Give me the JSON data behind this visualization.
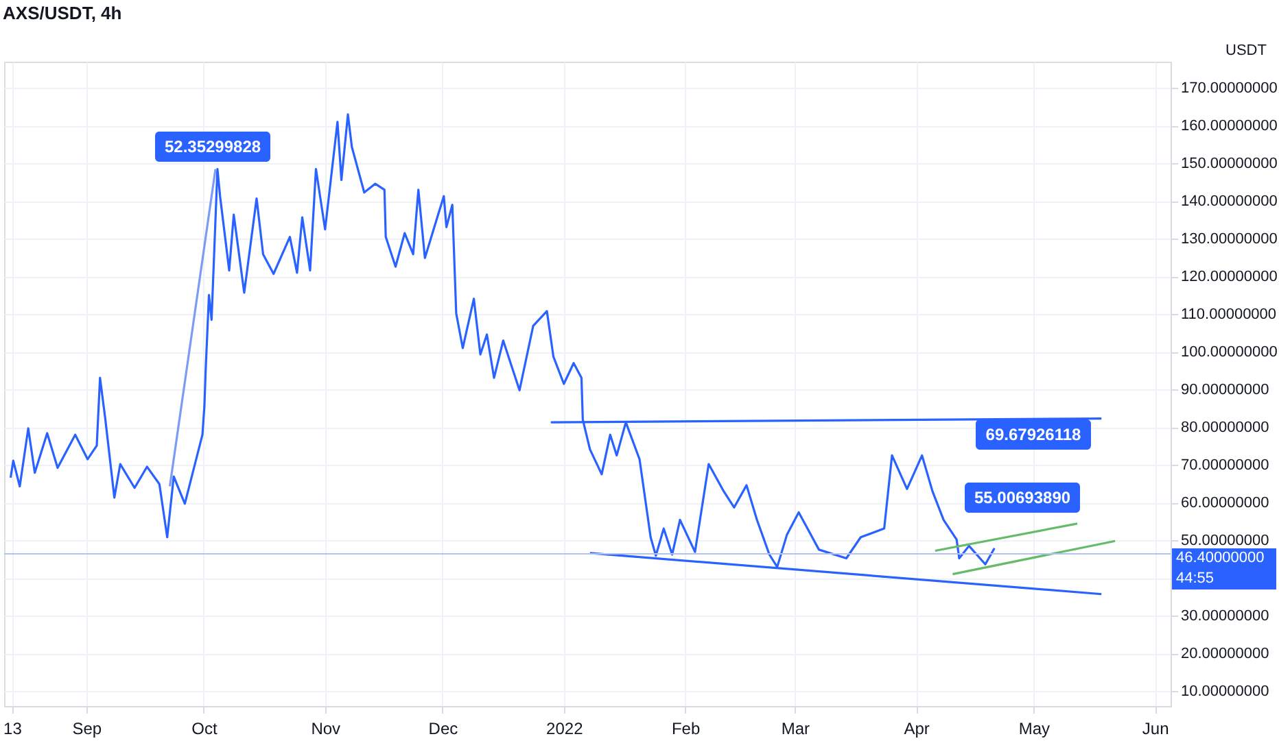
{
  "chart_data": {
    "type": "line",
    "title": "AXS/USDT, 4h",
    "ylabel": "USDT",
    "xlim": [
      "2021-08-11",
      "2022-06-05"
    ],
    "xticks": [
      {
        "value": "2021-08-13",
        "label": "13"
      },
      {
        "value": "2021-09-01",
        "label": "Sep"
      },
      {
        "value": "2021-10-01",
        "label": "Oct"
      },
      {
        "value": "2021-11-01",
        "label": "Nov"
      },
      {
        "value": "2021-12-01",
        "label": "Dec"
      },
      {
        "value": "2022-01-01",
        "label": "2022"
      },
      {
        "value": "2022-02-01",
        "label": "Feb"
      },
      {
        "value": "2022-03-01",
        "label": "Mar"
      },
      {
        "value": "2022-04-01",
        "label": "Apr"
      },
      {
        "value": "2022-05-01",
        "label": "May"
      },
      {
        "value": "2022-06-01",
        "label": "Jun"
      }
    ],
    "ylim": [
      6,
      177
    ],
    "yticks": [
      {
        "value": 10,
        "label": "10.00000000"
      },
      {
        "value": 20,
        "label": "20.00000000"
      },
      {
        "value": 30,
        "label": "30.00000000"
      },
      {
        "value": 40,
        "label": null
      },
      {
        "value": 50,
        "label": "50.00000000"
      },
      {
        "value": 60,
        "label": "60.00000000"
      },
      {
        "value": 70,
        "label": "70.00000000"
      },
      {
        "value": 80,
        "label": "80.00000000"
      },
      {
        "value": 90,
        "label": "90.00000000"
      },
      {
        "value": 100,
        "label": "100.00000000"
      },
      {
        "value": 110,
        "label": "110.00000000"
      },
      {
        "value": 120,
        "label": "120.00000000"
      },
      {
        "value": 130,
        "label": "130.00000000"
      },
      {
        "value": 140,
        "label": "140.00000000"
      },
      {
        "value": 150,
        "label": "150.00000000"
      },
      {
        "value": 160,
        "label": "160.00000000"
      },
      {
        "value": 170,
        "label": "170.00000000"
      }
    ],
    "grid": true,
    "series": [
      {
        "color": "#2962ff",
        "x": [
          "2021-08-12T16:00",
          "2021-08-13T08:00",
          "2021-08-15T00:00",
          "2021-08-17T04:00",
          "2021-08-18T20:00",
          "2021-08-22T00:00",
          "2021-08-24T16:00",
          "2021-08-29T04:00",
          "2021-09-01T08:00",
          "2021-09-03T16:00",
          "2021-09-04T12:00",
          "2021-09-05T20:00",
          "2021-09-08T04:00",
          "2021-09-09T16:00",
          "2021-09-13T08:00",
          "2021-09-16T12:00",
          "2021-09-19T16:00",
          "2021-09-21T16:00",
          "2021-09-23T08:00",
          "2021-09-26T04:00",
          "2021-09-30T16:00",
          "2021-10-01T04:00",
          "2021-10-01T12:00",
          "2021-10-02T08:00",
          "2021-10-03T00:00",
          "2021-10-04T12:00",
          "2021-10-05T04:00",
          "2021-10-07T12:00",
          "2021-10-08T16:00",
          "2021-10-11T08:00",
          "2021-10-14T12:00",
          "2021-10-16T04:00",
          "2021-10-18T20:00",
          "2021-10-23T00:00",
          "2021-10-24T20:00",
          "2021-10-26T04:00",
          "2021-10-28T04:00",
          "2021-10-29T16:00",
          "2021-11-01T00:00",
          "2021-11-04T04:00",
          "2021-11-05T04:00",
          "2021-11-06T20:00",
          "2021-11-07T20:00",
          "2021-11-11T00:00",
          "2021-11-13T20:00",
          "2021-11-16T04:00",
          "2021-11-16T12:00",
          "2021-11-19T00:00",
          "2021-11-21T08:00",
          "2021-11-23T12:00",
          "2021-11-24T20:00",
          "2021-11-26T12:00",
          "2021-11-29T16:00",
          "2021-12-01T08:00",
          "2021-12-02T00:00",
          "2021-12-03T12:00",
          "2021-12-04T12:00",
          "2021-12-06T04:00",
          "2021-12-09T00:00",
          "2021-12-10T16:00",
          "2021-12-12T08:00",
          "2021-12-14T04:00",
          "2021-12-16T12:00",
          "2021-12-20T16:00",
          "2021-12-24T04:00",
          "2021-12-27T16:00",
          "2021-12-29T08:00",
          "2022-01-01T00:00",
          "2022-01-03T12:00",
          "2022-01-05T12:00",
          "2022-01-05T20:00",
          "2022-01-07T16:00",
          "2022-01-10T16:00",
          "2022-01-12T20:00",
          "2022-01-14T12:00",
          "2022-01-16T20:00",
          "2022-01-20T08:00",
          "2022-01-23T04:00",
          "2022-01-24T12:00",
          "2022-01-26T12:00",
          "2022-01-28T16:00",
          "2022-01-30T16:00",
          "2022-02-03T12:00",
          "2022-02-07T00:00",
          "2022-02-10T20:00",
          "2022-02-13T12:00",
          "2022-02-16T16:00",
          "2022-02-19T08:00",
          "2022-02-22T12:00",
          "2022-02-24T12:00",
          "2022-02-27T00:00",
          "2022-03-02T00:00",
          "2022-03-07T04:00",
          "2022-03-14T04:00",
          "2022-03-17T20:00",
          "2022-03-23T20:00",
          "2022-03-25T20:00",
          "2022-03-29T16:00",
          "2022-04-02T12:00",
          "2022-04-05T04:00",
          "2022-04-08T00:00",
          "2022-04-11T08:00",
          "2022-04-12T00:00",
          "2022-04-14T12:00",
          "2022-04-18T16:00",
          "2022-04-21T00:00"
        ],
        "values": [
          66.6,
          71.1,
          64.3,
          79.7,
          67.9,
          78.4,
          69.2,
          78.0,
          71.5,
          75.1,
          93.1,
          82.3,
          61.3,
          70.2,
          63.9,
          69.5,
          64.9,
          50.8,
          66.9,
          59.7,
          78.0,
          85.6,
          95.4,
          115.1,
          108.5,
          148.5,
          141.3,
          121.6,
          136.4,
          115.7,
          140.7,
          125.9,
          120.7,
          130.5,
          121.0,
          135.7,
          121.6,
          148.5,
          132.5,
          161.0,
          145.6,
          163.0,
          154.4,
          142.3,
          144.6,
          143.0,
          130.5,
          122.6,
          131.5,
          125.9,
          143.0,
          124.9,
          135.7,
          141.3,
          133.1,
          139.0,
          110.2,
          101.0,
          114.1,
          99.3,
          104.6,
          93.1,
          103.0,
          89.8,
          106.9,
          110.8,
          98.7,
          91.5,
          97.0,
          93.1,
          82.0,
          74.1,
          67.5,
          78.0,
          72.5,
          81.3,
          71.5,
          50.8,
          45.9,
          53.1,
          46.2,
          55.4,
          46.9,
          70.2,
          63.0,
          58.7,
          64.6,
          55.4,
          46.2,
          42.9,
          51.5,
          57.4,
          47.5,
          45.2,
          50.8,
          53.1,
          72.5,
          63.6,
          72.5,
          63.0,
          55.4,
          50.2,
          45.2,
          48.5,
          43.6,
          47.9
        ]
      },
      {
        "color": "#7b9cf6",
        "x": [
          "2021-09-22T08:00",
          "2021-10-04T00:00"
        ],
        "values": [
          64.3,
          148.5
        ]
      },
      {
        "color": "#2962ff",
        "x": [
          "2021-12-28T16:00",
          "2022-05-18T08:00"
        ],
        "values": [
          81.3,
          82.3
        ]
      },
      {
        "color": "#2962ff",
        "x": [
          "2022-01-07T16:00",
          "2022-05-18T08:00"
        ],
        "values": [
          46.6,
          35.7
        ]
      },
      {
        "color": "#66bb6a",
        "x": [
          "2022-04-05T20:00",
          "2022-05-12T04:00"
        ],
        "values": [
          47.2,
          54.4
        ]
      },
      {
        "color": "#66bb6a",
        "x": [
          "2022-04-10T08:00",
          "2022-05-21T20:00"
        ],
        "values": [
          41.0,
          49.8
        ]
      }
    ],
    "ref_lines": [
      {
        "axis": "y",
        "value": 46.4,
        "label": "46.40000000",
        "color": "#b2c2f5"
      }
    ],
    "annotations": [
      "52.35299828",
      "69.67926118",
      "55.00693890",
      "44:55"
    ]
  }
}
